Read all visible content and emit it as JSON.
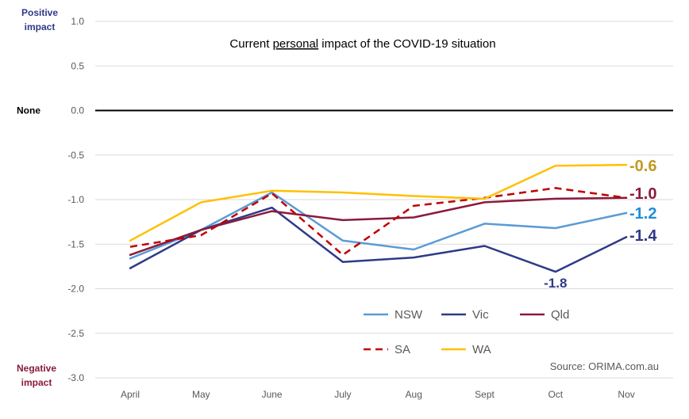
{
  "chart_data": {
    "type": "line",
    "title_parts": [
      "Current ",
      "personal",
      " impact of the COVID-19 situation"
    ],
    "categories": [
      "April",
      "May",
      "June",
      "July",
      "Aug",
      "Sept",
      "Oct",
      "Nov"
    ],
    "ylim": [
      -3.0,
      1.0
    ],
    "yticks": [
      1.0,
      0.5,
      0.0,
      -0.5,
      -1.0,
      -1.5,
      -2.0,
      -2.5,
      -3.0
    ],
    "ytick_labels": [
      "1.0",
      "0.5",
      "0.0",
      "-0.5",
      "-1.0",
      "-1.5",
      "-2.0",
      "-2.5",
      "-3.0"
    ],
    "grid": true,
    "zero_line": true,
    "side_labels": {
      "positive": [
        "Positive",
        "impact"
      ],
      "none": "None",
      "negative": [
        "Negative",
        "impact"
      ]
    },
    "series": [
      {
        "name": "NSW",
        "color": "#5b9bd5",
        "dash": false,
        "values": [
          -1.66,
          -1.34,
          -0.92,
          -1.46,
          -1.56,
          -1.27,
          -1.32,
          -1.15
        ]
      },
      {
        "name": "Vic",
        "color": "#2e3a87",
        "dash": false,
        "values": [
          -1.77,
          -1.34,
          -1.09,
          -1.7,
          -1.65,
          -1.52,
          -1.81,
          -1.42
        ]
      },
      {
        "name": "Qld",
        "color": "#8b1a3c",
        "dash": false,
        "values": [
          -1.62,
          -1.34,
          -1.13,
          -1.23,
          -1.2,
          -1.03,
          -0.99,
          -0.98
        ]
      },
      {
        "name": "SA",
        "color": "#c00000",
        "dash": true,
        "values": [
          -1.53,
          -1.4,
          -0.93,
          -1.62,
          -1.07,
          -0.98,
          -0.87,
          -0.98
        ]
      },
      {
        "name": "WA",
        "color": "#ffc000",
        "dash": false,
        "values": [
          -1.46,
          -1.03,
          -0.9,
          -0.92,
          -0.96,
          -0.99,
          -0.62,
          -0.61
        ]
      }
    ],
    "end_labels": [
      {
        "text": "-0.6",
        "color": "#c09a22"
      },
      {
        "text": "-1.0",
        "color": "#8b1a3c"
      },
      {
        "text": "-1.2",
        "color": "#1f8fd6"
      },
      {
        "text": "-1.4",
        "color": "#2e3a87"
      }
    ],
    "annotation": {
      "text": "-1.8",
      "color": "#2e3a87",
      "series": "Vic",
      "category": "Oct"
    },
    "legend": {
      "placement": "bottom-right",
      "rows": [
        [
          "NSW",
          "Vic",
          "Qld"
        ],
        [
          "SA",
          "WA"
        ]
      ]
    },
    "source": "Source: ORIMA.com.au"
  }
}
